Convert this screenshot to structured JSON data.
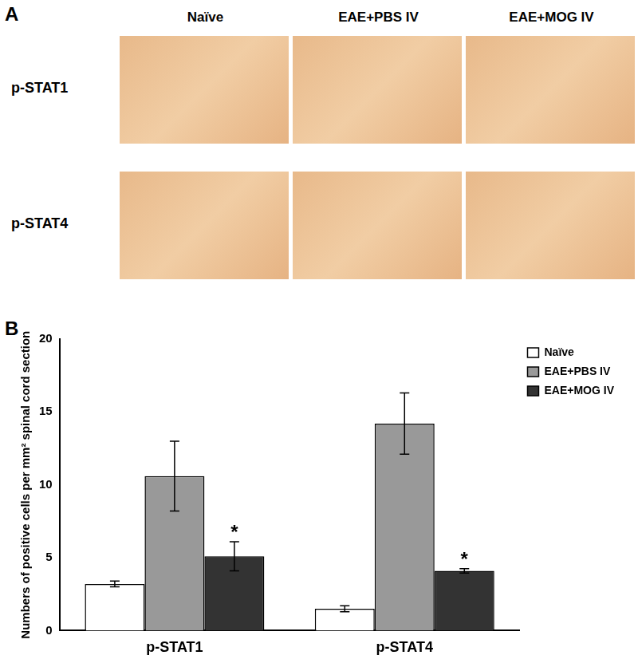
{
  "figure": {
    "panel_a": {
      "label": "A",
      "columns": [
        "Naïve",
        "EAE+PBS IV",
        "EAE+MOG IV"
      ],
      "rows": [
        "p-STAT1",
        "p-STAT4"
      ]
    },
    "panel_b": {
      "label": "B"
    }
  },
  "chart_data": {
    "type": "bar",
    "y_label": "Numbers of positive cells per mm² spinal cord section",
    "categories": [
      "p-STAT1",
      "p-STAT4"
    ],
    "series": [
      {
        "name": "Naïve",
        "color": "#ffffff",
        "values": [
          3.2,
          1.5
        ],
        "errors": [
          0.2,
          0.2
        ]
      },
      {
        "name": "EAE+PBS IV",
        "color": "#999999",
        "values": [
          10.6,
          14.2
        ],
        "errors": [
          2.4,
          2.1
        ]
      },
      {
        "name": "EAE+MOG IV",
        "color": "#333333",
        "values": [
          5.1,
          4.1
        ],
        "errors": [
          1.0,
          0.15
        ]
      }
    ],
    "annotations": [
      {
        "category": "p-STAT1",
        "series": "EAE+MOG IV",
        "text": "*"
      },
      {
        "category": "p-STAT4",
        "series": "EAE+MOG IV",
        "text": "*"
      }
    ],
    "ylim": [
      0,
      20
    ],
    "yticks": [
      0,
      5,
      10,
      15,
      20
    ],
    "grid": false,
    "legend": "top-right"
  }
}
